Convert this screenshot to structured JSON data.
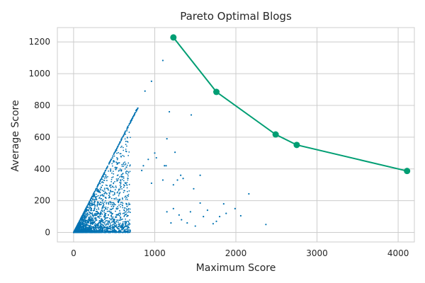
{
  "chart_data": {
    "type": "scatter",
    "title": "Pareto Optimal Blogs",
    "xlabel": "Maximum Score",
    "ylabel": "Average Score",
    "xlim": [
      -200,
      4200
    ],
    "ylim": [
      -60,
      1290
    ],
    "xticks": [
      0,
      1000,
      2000,
      3000,
      4000
    ],
    "yticks": [
      0,
      200,
      400,
      600,
      800,
      1000,
      1200
    ],
    "grid": true,
    "colors": {
      "scatter": "#0072b2",
      "frontier": "#009e73",
      "grid": "#cccccc",
      "spine": "#cccccc"
    },
    "series": [
      {
        "kind": "scatter",
        "points": [
          [
            1100,
            1083
          ],
          [
            960,
            952
          ],
          [
            880,
            890
          ],
          [
            1180,
            760
          ],
          [
            1450,
            740
          ],
          [
            1000,
            500
          ],
          [
            1020,
            470
          ],
          [
            1250,
            505
          ],
          [
            1150,
            590
          ],
          [
            1120,
            420
          ],
          [
            920,
            460
          ],
          [
            860,
            420
          ],
          [
            840,
            390
          ],
          [
            1140,
            420
          ],
          [
            1320,
            360
          ],
          [
            1560,
            360
          ],
          [
            1280,
            330
          ],
          [
            1230,
            300
          ],
          [
            1350,
            340
          ],
          [
            1100,
            330
          ],
          [
            960,
            310
          ],
          [
            2160,
            243
          ],
          [
            1850,
            180
          ],
          [
            1480,
            275
          ],
          [
            1560,
            185
          ],
          [
            1650,
            140
          ],
          [
            1990,
            150
          ],
          [
            2060,
            105
          ],
          [
            1880,
            120
          ],
          [
            1760,
            70
          ],
          [
            1720,
            55
          ],
          [
            1300,
            110
          ],
          [
            1440,
            130
          ],
          [
            1330,
            80
          ],
          [
            2370,
            50
          ],
          [
            1600,
            100
          ],
          [
            1230,
            150
          ],
          [
            1400,
            60
          ],
          [
            1800,
            100
          ],
          [
            1500,
            40
          ],
          [
            1200,
            60
          ],
          [
            1150,
            130
          ]
        ]
      },
      {
        "kind": "line",
        "points": [
          [
            1230,
            1228
          ],
          [
            1760,
            885
          ],
          [
            2490,
            617
          ],
          [
            2750,
            551
          ],
          [
            4110,
            387
          ]
        ]
      }
    ]
  }
}
